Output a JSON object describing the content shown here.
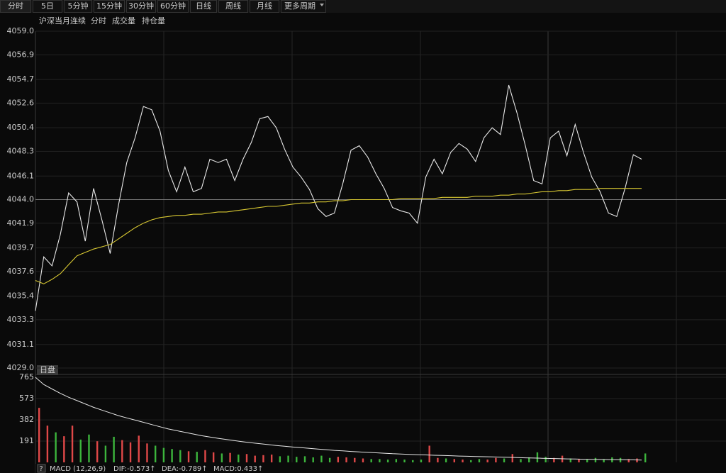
{
  "tabs": [
    "分时",
    "5日",
    "5分钟",
    "15分钟",
    "30分钟",
    "60分钟",
    "日线",
    "周线",
    "月线",
    "更多周期"
  ],
  "menus": [
    "分时",
    "成交量",
    "持仓量"
  ],
  "chart_data": [
    {
      "type": "line",
      "title": "沪深当月连续",
      "ylim": [
        4029,
        4059
      ],
      "reference_line": 4044,
      "up_color": "#e04848",
      "down_color": "#3cb43c",
      "base_color": "#e8e8e8",
      "grid": true,
      "yticks": [
        {
          "value": 4059,
          "label": "4059.0"
        },
        {
          "value": 4056.9,
          "label": "4056.9"
        },
        {
          "value": 4054.7,
          "label": "4054.7"
        },
        {
          "value": 4052.6,
          "label": "4052.6"
        },
        {
          "value": 4050.4,
          "label": "4050.4"
        },
        {
          "value": 4048.3,
          "label": "4048.3"
        },
        {
          "value": 4046.1,
          "label": "4046.1"
        },
        {
          "value": 4044,
          "label": "4044.0"
        },
        {
          "value": 4041.9,
          "label": "4041.9"
        },
        {
          "value": 4039.7,
          "label": "4039.7"
        },
        {
          "value": 4037.6,
          "label": "4037.6"
        },
        {
          "value": 4035.4,
          "label": "4035.4"
        },
        {
          "value": 4033.3,
          "label": "4033.3"
        },
        {
          "value": 4031.1,
          "label": "4031.1"
        },
        {
          "value": 4029,
          "label": "4029.0"
        }
      ],
      "series": [
        {
          "color": "#e8e8e8",
          "values": [
            4034.1,
            4038.9,
            4038.1,
            4040.9,
            4044.6,
            4043.8,
            4040.3,
            4045.0,
            4042.2,
            4039.2,
            4043.5,
            4047.3,
            4049.5,
            4052.3,
            4052.0,
            4050.1,
            4046.6,
            4044.7,
            4046.9,
            4044.7,
            4045.0,
            4047.6,
            4047.3,
            4047.6,
            4045.7,
            4047.6,
            4049.1,
            4051.2,
            4051.4,
            4050.4,
            4048.5,
            4046.9,
            4046.0,
            4044.9,
            4043.2,
            4042.5,
            4042.8,
            4045.4,
            4048.4,
            4048.8,
            4047.8,
            4046.3,
            4045.0,
            4043.3,
            4043.0,
            4042.8,
            4041.9,
            4046.0,
            4047.6,
            4046.3,
            4048.2,
            4049.0,
            4048.5,
            4047.4,
            4049.5,
            4050.4,
            4049.8,
            4054.2,
            4051.7,
            4048.8,
            4045.7,
            4045.4,
            4049.5,
            4050.1,
            4047.9,
            4050.7,
            4048.2,
            4046.0,
            4044.7,
            4042.8,
            4042.5,
            4045.0,
            4048.0,
            4047.6
          ]
        },
        {
          "color": "#d8c832",
          "values": [
            4036.8,
            4036.5,
            4036.9,
            4037.4,
            4038.2,
            4039.0,
            4039.3,
            4039.6,
            4039.8,
            4040.0,
            4040.5,
            4041.0,
            4041.5,
            4041.9,
            4042.2,
            4042.4,
            4042.5,
            4042.6,
            4042.6,
            4042.7,
            4042.7,
            4042.8,
            4042.9,
            4042.9,
            4043.0,
            4043.1,
            4043.2,
            4043.3,
            4043.4,
            4043.4,
            4043.5,
            4043.6,
            4043.7,
            4043.7,
            4043.8,
            4043.8,
            4043.9,
            4043.9,
            4044.0,
            4044.0,
            4044.0,
            4044.0,
            4044.0,
            4044.0,
            4044.1,
            4044.1,
            4044.1,
            4044.1,
            4044.1,
            4044.2,
            4044.2,
            4044.2,
            4044.2,
            4044.3,
            4044.3,
            4044.3,
            4044.4,
            4044.4,
            4044.5,
            4044.5,
            4044.6,
            4044.7,
            4044.7,
            4044.8,
            4044.8,
            4044.9,
            4044.9,
            4044.9,
            4045.0,
            4045.0,
            4045.0,
            4045.0,
            4045.0,
            4045.0
          ]
        }
      ]
    },
    {
      "type": "bar",
      "label": "日盘",
      "ylim": [
        0,
        765
      ],
      "yticks": [
        765,
        573,
        382,
        191
      ],
      "up_color": "#e04848",
      "down_color": "#3cb43c",
      "values": [
        490,
        330,
        270,
        235,
        330,
        205,
        250,
        190,
        150,
        230,
        200,
        180,
        240,
        170,
        150,
        130,
        120,
        110,
        100,
        95,
        110,
        90,
        80,
        85,
        70,
        75,
        60,
        65,
        70,
        55,
        60,
        50,
        55,
        45,
        60,
        40,
        50,
        45,
        40,
        35,
        30,
        30,
        25,
        30,
        25,
        20,
        25,
        150,
        40,
        35,
        30,
        25,
        20,
        30,
        25,
        40,
        35,
        75,
        30,
        45,
        90,
        50,
        40,
        60,
        35,
        30,
        25,
        40,
        30,
        45,
        40,
        30,
        35,
        80
      ],
      "line": {
        "color": "#e8e8e8",
        "values": [
          765,
          700,
          660,
          620,
          585,
          555,
          525,
          495,
          470,
          445,
          420,
          400,
          380,
          360,
          340,
          320,
          300,
          285,
          270,
          255,
          240,
          228,
          216,
          205,
          195,
          185,
          176,
          168,
          160,
          152,
          145,
          138,
          132,
          126,
          120,
          114,
          108,
          103,
          98,
          94,
          90,
          86,
          82,
          78,
          75,
          72,
          69,
          67,
          64,
          62,
          60,
          57,
          55,
          53,
          51,
          49,
          47,
          45,
          43,
          41,
          39,
          37,
          35,
          33,
          31,
          30,
          28,
          27,
          26,
          25,
          24,
          23,
          22,
          21
        ]
      },
      "footer": [
        "?",
        "MACD (12,26,9)",
        "DIF:-0.573↑",
        "DEA:-0.789↑",
        "MACD:0.433↑"
      ]
    }
  ]
}
